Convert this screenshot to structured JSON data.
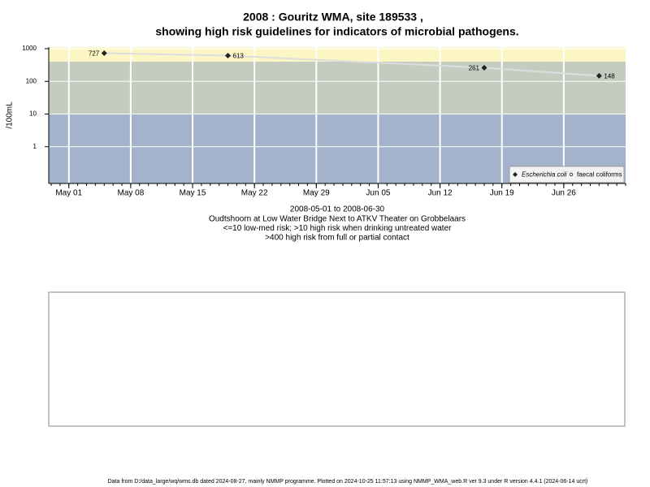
{
  "chart_data": {
    "type": "line",
    "title": "2008 : Gouritz WMA, site 189533 ,",
    "title_line2": "showing high risk guidelines for indicators of microbial pathogens.",
    "y_label": "/100mL",
    "subtitle": [
      "2008-05-01 to 2008-06-30",
      "Oudtshoorn at Low Water Bridge Next to ATKV Theater on Grobbelaars",
      "<=10 low-med risk; >10 high risk when drinking untreated water",
      ">400 high risk from full or partial contact"
    ],
    "footer": "Data from D:/data_large/wq/wms.db dated 2024-08-27, mainly NMMP programme. Plotted on 2024-10-25 11:57:13 using NMMP_WMA_web.R ver 9.3 under R version 4.4.1 (2024-06-14 ucrt)",
    "x": [
      "2008-05-05",
      "2008-05-19",
      "2008-06-17",
      "2008-06-30"
    ],
    "series": [
      {
        "name": "Escherichia coli",
        "color": "#222222",
        "line_color": "#dddddd",
        "values": [
          727,
          613,
          261,
          148
        ]
      },
      {
        "name": "faecal coliforms",
        "color": "#222222",
        "values": [
          null,
          null,
          null,
          null
        ]
      }
    ],
    "log_y": true,
    "ylim": [
      0.075,
      1120
    ],
    "yticks": [
      1,
      10,
      100,
      1000
    ],
    "xlim": [
      "2008-04-29",
      "2008-07-03"
    ],
    "xticks": [
      {
        "value": "2008-05-01",
        "label": "May 01"
      },
      {
        "value": "2008-05-08",
        "label": "May 08"
      },
      {
        "value": "2008-05-15",
        "label": "May 15"
      },
      {
        "value": "2008-05-22",
        "label": "May 22"
      },
      {
        "value": "2008-05-29",
        "label": "May 29"
      },
      {
        "value": "2008-06-05",
        "label": "Jun 05"
      },
      {
        "value": "2008-06-12",
        "label": "Jun 12"
      },
      {
        "value": "2008-06-19",
        "label": "Jun 19"
      },
      {
        "value": "2008-06-26",
        "label": "Jun 26"
      }
    ],
    "bands": [
      {
        "from": 0.075,
        "to": 10,
        "color": "#a3b3cb"
      },
      {
        "from": 10,
        "to": 400,
        "color": "#c4ccbf"
      },
      {
        "from": 400,
        "to": 1120,
        "color": "#fbf6c4"
      }
    ],
    "grid": true,
    "legend": "bottom-right"
  }
}
